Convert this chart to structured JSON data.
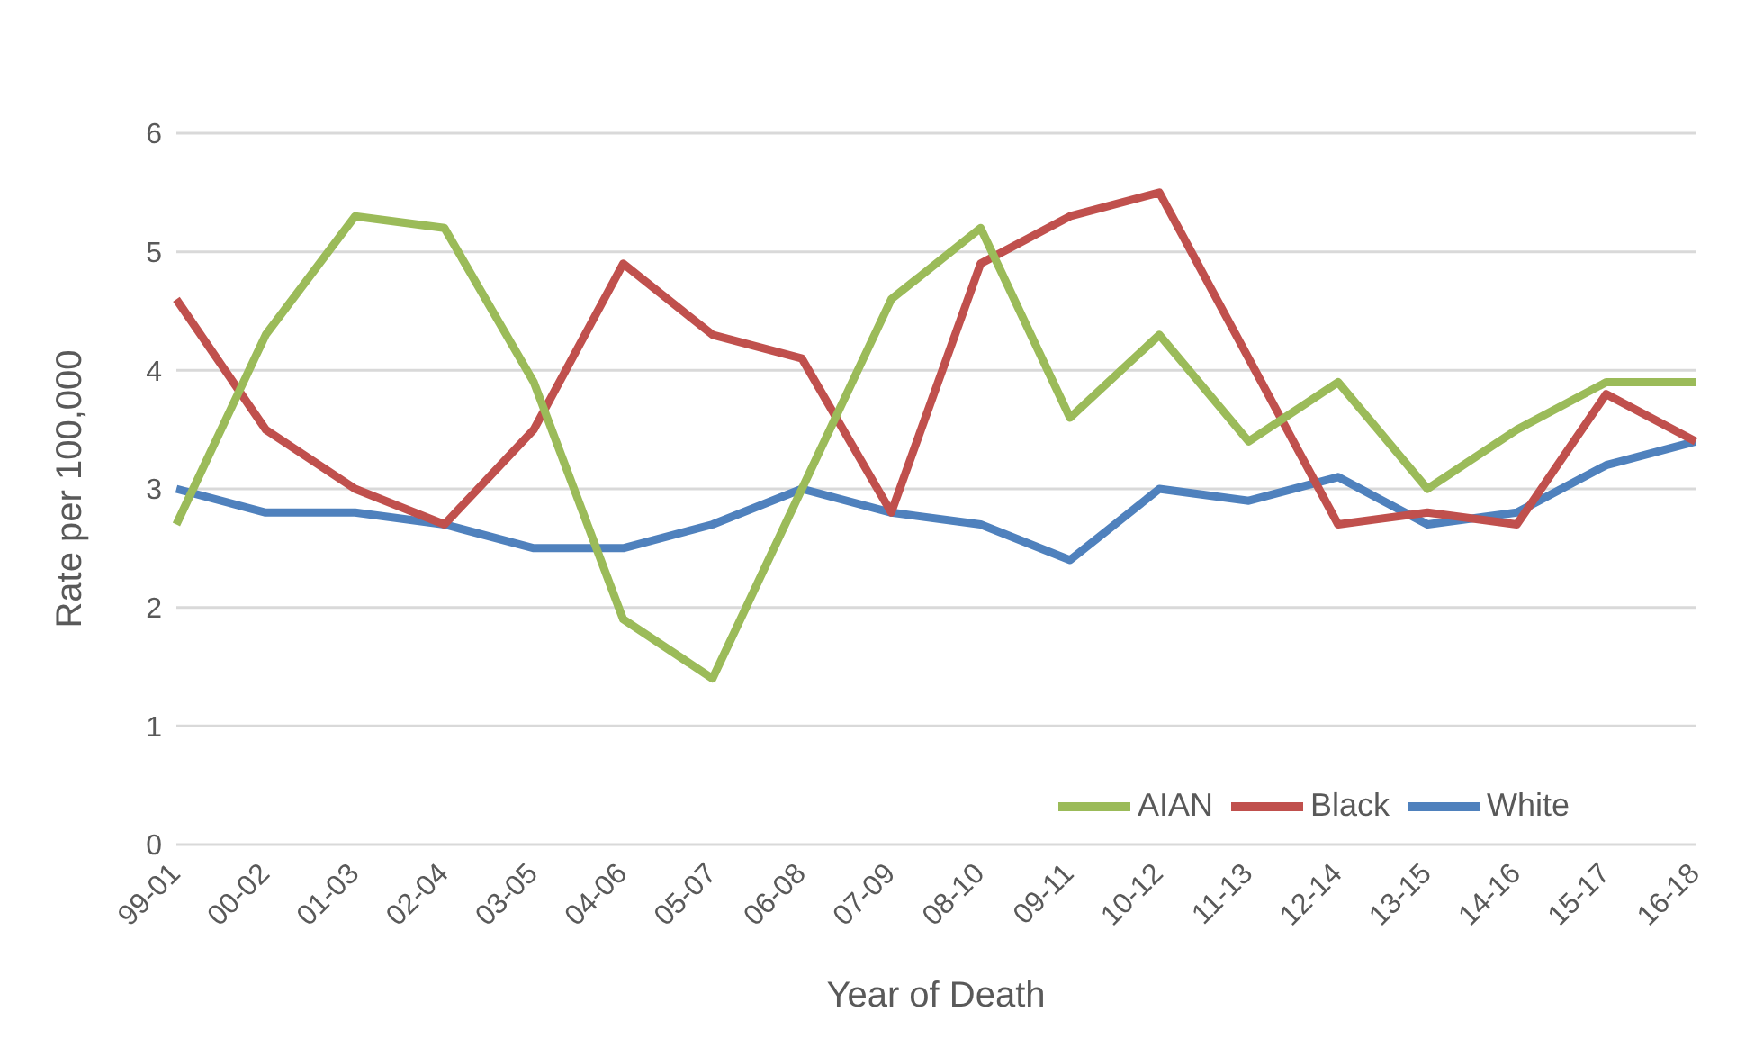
{
  "chart_data": {
    "type": "line",
    "xlabel": "Year of Death",
    "ylabel": "Rate per 100,000",
    "categories": [
      "99-01",
      "00-02",
      "01-03",
      "02-04",
      "03-05",
      "04-06",
      "05-07",
      "06-08",
      "07-09",
      "08-10",
      "09-11",
      "10-12",
      "11-13",
      "12-14",
      "13-15",
      "14-16",
      "15-17",
      "16-18"
    ],
    "series": [
      {
        "name": "White",
        "color": "#4f81bd",
        "values": [
          3.0,
          2.8,
          2.8,
          2.7,
          2.5,
          2.5,
          2.7,
          3.0,
          2.8,
          2.7,
          2.4,
          3.0,
          2.9,
          3.1,
          2.7,
          2.8,
          3.2,
          3.4
        ]
      },
      {
        "name": "Black",
        "color": "#c0504d",
        "values": [
          4.6,
          3.5,
          3.0,
          2.7,
          3.5,
          4.9,
          4.3,
          4.1,
          2.8,
          4.9,
          5.3,
          5.5,
          4.1,
          2.7,
          2.8,
          2.7,
          3.8,
          3.4
        ]
      },
      {
        "name": "AIAN",
        "color": "#9bbb59",
        "values": [
          2.7,
          4.3,
          5.3,
          5.2,
          3.9,
          1.9,
          1.4,
          3.0,
          4.6,
          5.2,
          3.6,
          4.3,
          3.4,
          3.9,
          3.0,
          3.5,
          3.9,
          3.9
        ]
      }
    ],
    "ylim": [
      0,
      6
    ],
    "yticks": [
      0,
      1,
      2,
      3,
      4,
      5,
      6
    ],
    "grid": "y",
    "legend": "bottom right",
    "marker": "none",
    "line_style": "solid"
  }
}
